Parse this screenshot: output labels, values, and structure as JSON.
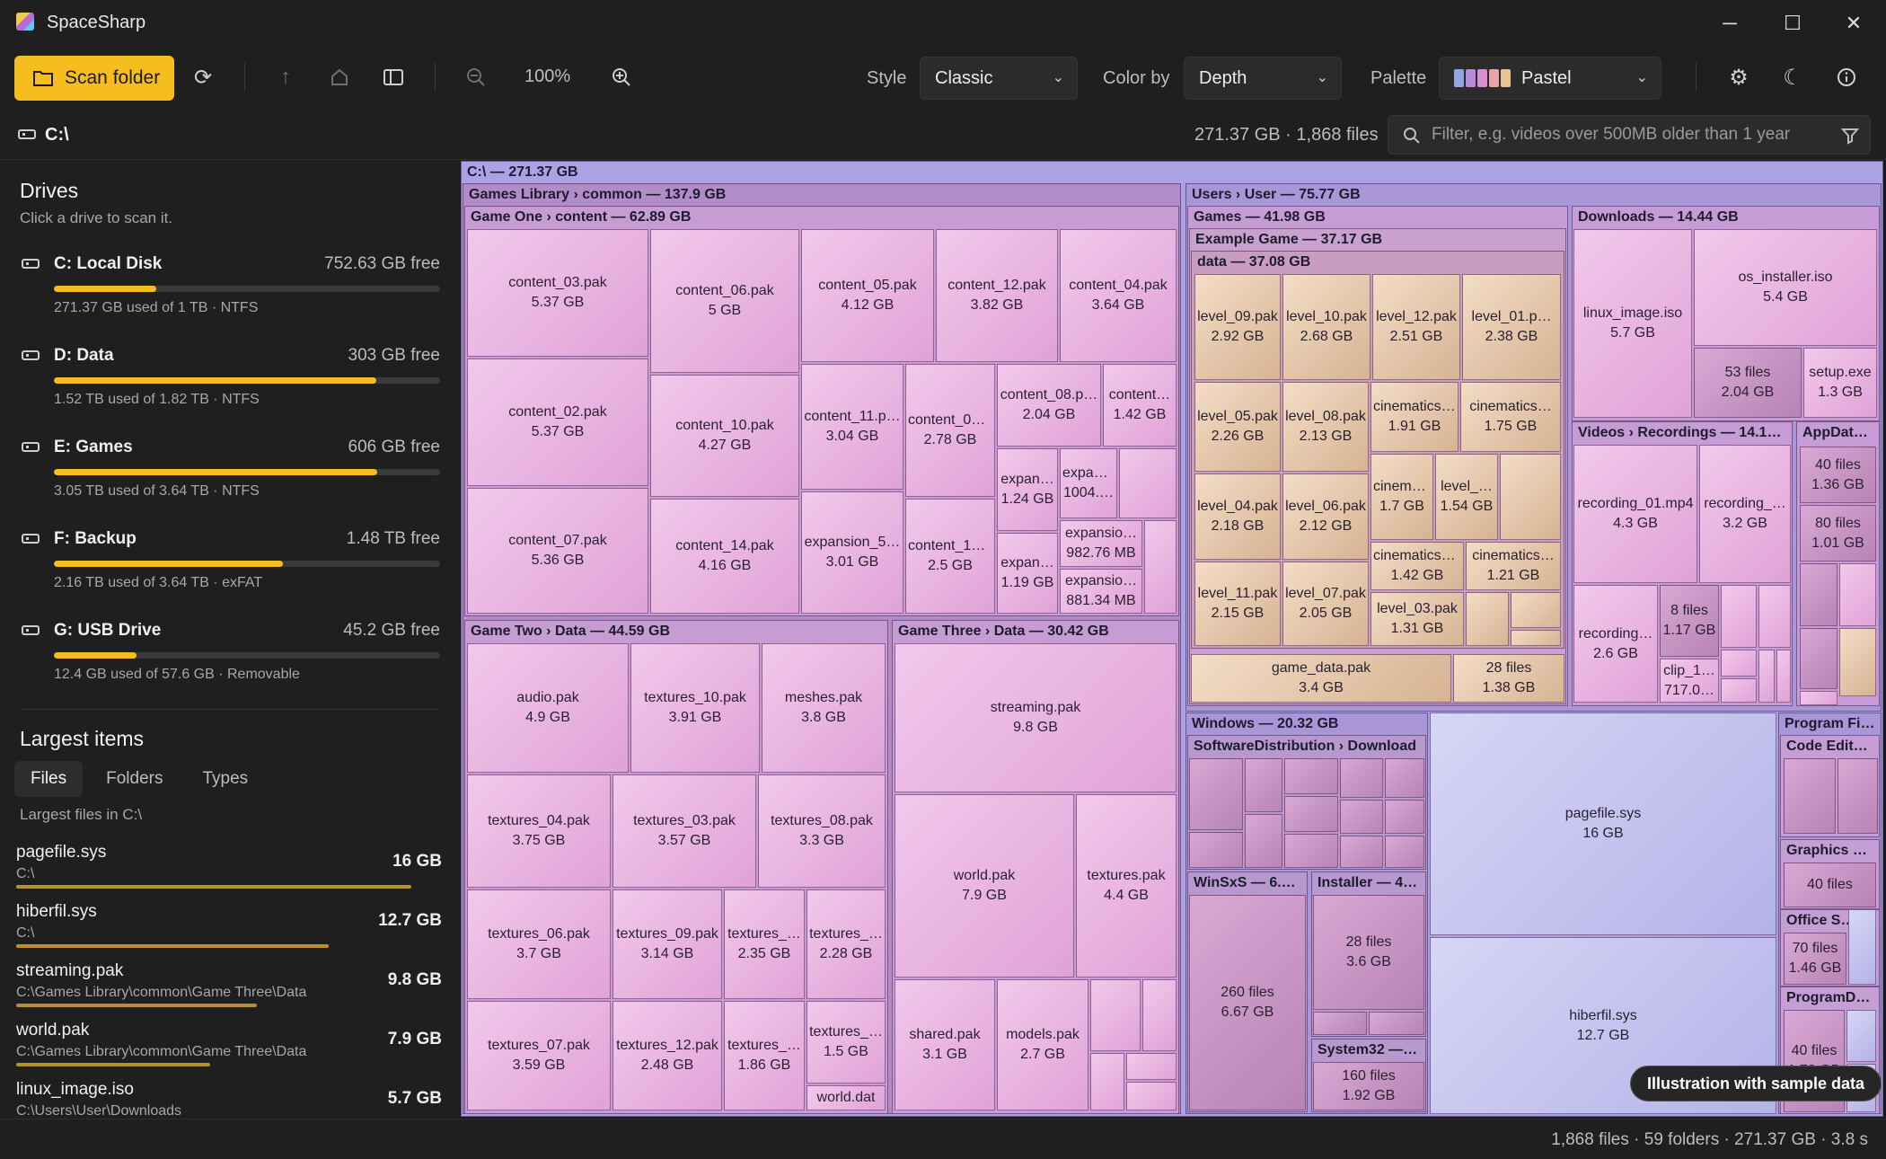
{
  "app": {
    "title": "SpaceSharp"
  },
  "toolbar": {
    "scan_label": "Scan folder",
    "zoom": "100%",
    "style_label": "Style",
    "style_value": "Classic",
    "colorby_label": "Color by",
    "colorby_value": "Depth",
    "palette_label": "Palette",
    "palette_value": "Pastel",
    "palette_colors": [
      "#8fa7e6",
      "#b98be0",
      "#d98fcf",
      "#e7a3a8",
      "#e9c493"
    ]
  },
  "pathbar": {
    "path": "C:\\",
    "summary": "271.37 GB · 1,868 files",
    "filter_placeholder": "Filter, e.g. videos over 500MB older than 1 year"
  },
  "sidebar": {
    "drives_title": "Drives",
    "drives_hint": "Click a drive to scan it.",
    "drives": [
      {
        "name": "C: Local Disk",
        "free": "752.63 GB free",
        "info": "271.37 GB used of 1 TB · NTFS",
        "used_pct": 26.5
      },
      {
        "name": "D: Data",
        "free": "303 GB free",
        "info": "1.52 TB used of 1.82 TB · NTFS",
        "used_pct": 83.5
      },
      {
        "name": "E: Games",
        "free": "606 GB free",
        "info": "3.05 TB used of 3.64 TB · NTFS",
        "used_pct": 83.8
      },
      {
        "name": "F: Backup",
        "free": "1.48 TB free",
        "info": "2.16 TB used of 3.64 TB · exFAT",
        "used_pct": 59.3
      },
      {
        "name": "G: USB Drive",
        "free": "45.2 GB free",
        "info": "12.4 GB used of 57.6 GB · Removable",
        "used_pct": 21.5
      }
    ],
    "largest_title": "Largest items",
    "tabs": [
      "Files",
      "Folders",
      "Types"
    ],
    "largest_caption": "Largest files in C:\\",
    "files": [
      {
        "name": "pagefile.sys",
        "path": "C:\\",
        "size": "16 GB",
        "rel": 1.0
      },
      {
        "name": "hiberfil.sys",
        "path": "C:\\",
        "size": "12.7 GB",
        "rel": 0.79
      },
      {
        "name": "streaming.pak",
        "path": "C:\\Games Library\\common\\Game Three\\Data",
        "size": "9.8 GB",
        "rel": 0.61
      },
      {
        "name": "world.pak",
        "path": "C:\\Games Library\\common\\Game Three\\Data",
        "size": "7.9 GB",
        "rel": 0.49
      },
      {
        "name": "linux_image.iso",
        "path": "C:\\Users\\User\\Downloads",
        "size": "5.7 GB",
        "rel": 0.36
      }
    ]
  },
  "treemap": {
    "root": "C:\\  —  271.37 GB",
    "groups": {
      "games_library": "Games Library › common  —  137.9 GB",
      "game_one": "Game One › content  —  62.89 GB",
      "game_two": "Game Two › Data  —  44.59 GB",
      "game_three": "Game Three › Data  —  30.42 GB",
      "users": "Users › User  —  75.77 GB",
      "games": "Games  —  41.98 GB",
      "example_game": "Example Game  —  37.17 GB",
      "data": "data  —  37.08 GB",
      "downloads": "Downloads  —  14.44 GB",
      "videos": "Videos › Recordings  —  14.16 GB",
      "appdata": "AppData…",
      "windows": "Windows  —  20.32 GB",
      "softdist": "SoftwareDistribution › Download",
      "winsxs": "WinSxS  —  6.…",
      "installer": "Installer  —  4.…",
      "system32": "System32  —  …",
      "program_files": "Program Fil…",
      "code_editor": "Code Edito…",
      "graphics": "Graphics D…",
      "office": "Office S…",
      "programdata": "ProgramDat…"
    },
    "leaves": {
      "c03": [
        "content_03.pak",
        "5.37 GB"
      ],
      "c06": [
        "content_06.pak",
        "5 GB"
      ],
      "c05": [
        "content_05.pak",
        "4.12 GB"
      ],
      "c12": [
        "content_12.pak",
        "3.82 GB"
      ],
      "c04": [
        "content_04.pak",
        "3.64 GB"
      ],
      "c02": [
        "content_02.pak",
        "5.37 GB"
      ],
      "c10": [
        "content_10.pak",
        "4.27 GB"
      ],
      "c11": [
        "content_11.p…",
        "3.04 GB"
      ],
      "c09": [
        "content_09…",
        "2.78 GB"
      ],
      "c08": [
        "content_08.p…",
        "2.04 GB"
      ],
      "cx": [
        "content…",
        "1.42 GB"
      ],
      "e1": [
        "expan…",
        "1.24 GB"
      ],
      "e2": [
        "expan…",
        "1004.…"
      ],
      "c07": [
        "content_07.pak",
        "5.36 GB"
      ],
      "c14": [
        "content_14.pak",
        "4.16 GB"
      ],
      "e5": [
        "expansion_5…",
        "3.01 GB"
      ],
      "c13": [
        "content_13…",
        "2.5 GB"
      ],
      "e3": [
        "expan…",
        "1.19 GB"
      ],
      "e4": [
        "expansio…",
        "982.76 MB"
      ],
      "e6": [
        "expansio…",
        "881.34 MB"
      ],
      "audio": [
        "audio.pak",
        "4.9 GB"
      ],
      "t10": [
        "textures_10.pak",
        "3.91 GB"
      ],
      "meshes": [
        "meshes.pak",
        "3.8 GB"
      ],
      "t04": [
        "textures_04.pak",
        "3.75 GB"
      ],
      "t03": [
        "textures_03.pak",
        "3.57 GB"
      ],
      "t08": [
        "textures_08.pak",
        "3.3 GB"
      ],
      "t06": [
        "textures_06.pak",
        "3.7 GB"
      ],
      "t09": [
        "textures_09.pak",
        "3.14 GB"
      ],
      "tA": [
        "textures_…",
        "2.35 GB"
      ],
      "tB": [
        "textures_…",
        "2.28 GB"
      ],
      "t07": [
        "textures_07.pak",
        "3.59 GB"
      ],
      "t12": [
        "textures_12.pak",
        "2.48 GB"
      ],
      "tC": [
        "textures_…",
        "1.86 GB"
      ],
      "tD": [
        "textures_…",
        "1.5 GB"
      ],
      "worlddat": [
        "world.dat",
        ""
      ],
      "streaming": [
        "streaming.pak",
        "9.8 GB"
      ],
      "world": [
        "world.pak",
        "7.9 GB"
      ],
      "texturespak": [
        "textures.pak",
        "4.4 GB"
      ],
      "shared": [
        "shared.pak",
        "3.1 GB"
      ],
      "models": [
        "models.pak",
        "2.7 GB"
      ],
      "l09": [
        "level_09.pak",
        "2.92 GB"
      ],
      "l10": [
        "level_10.pak",
        "2.68 GB"
      ],
      "l12": [
        "level_12.pak",
        "2.51 GB"
      ],
      "l01": [
        "level_01.p…",
        "2.38 GB"
      ],
      "l05": [
        "level_05.pak",
        "2.26 GB"
      ],
      "l08": [
        "level_08.pak",
        "2.13 GB"
      ],
      "cin1": [
        "cinematics_…",
        "1.91 GB"
      ],
      "cin2": [
        "cinematics…",
        "1.75 GB"
      ],
      "l04": [
        "level_04.pak",
        "2.18 GB"
      ],
      "l06": [
        "level_06.pak",
        "2.12 GB"
      ],
      "cin3": [
        "cinema…",
        "1.7 GB"
      ],
      "lv": [
        "level_…",
        "1.54 GB"
      ],
      "l11": [
        "level_11.pak",
        "2.15 GB"
      ],
      "l07": [
        "level_07.pak",
        "2.05 GB"
      ],
      "cin4": [
        "cinematics_…",
        "1.42 GB"
      ],
      "cin5": [
        "cinematics…",
        "1.21 GB"
      ],
      "l03": [
        "level_03.pak",
        "1.31 GB"
      ],
      "gamedata": [
        "game_data.pak",
        "3.4 GB"
      ],
      "f28": [
        "28 files",
        "1.38 GB"
      ],
      "linux": [
        "linux_image.iso",
        "5.7 GB"
      ],
      "osinst": [
        "os_installer.iso",
        "5.4 GB"
      ],
      "f53": [
        "53 files",
        "2.04 GB"
      ],
      "setup": [
        "setup.exe",
        "1.3 GB"
      ],
      "rec01": [
        "recording_01.mp4",
        "4.3 GB"
      ],
      "rec2": [
        "recording_…",
        "3.2 GB"
      ],
      "rec3": [
        "recording…",
        "2.6 GB"
      ],
      "f8": [
        "8 files",
        "1.17 GB"
      ],
      "clip": [
        "clip_1…",
        "717.0…"
      ],
      "ad40": [
        "40 files",
        "1.36 GB"
      ],
      "ad80": [
        "80 files",
        "1.01 GB"
      ],
      "pagefile": [
        "pagefile.sys",
        "16 GB"
      ],
      "hiberfil": [
        "hiberfil.sys",
        "12.7 GB"
      ],
      "f260": [
        "260 files",
        "6.67 GB"
      ],
      "f28b": [
        "28 files",
        "3.6 GB"
      ],
      "f160": [
        "160 files",
        "1.92 GB"
      ],
      "g40": [
        "40 files",
        ""
      ],
      "o70": [
        "70 files",
        "1.46 GB"
      ],
      "pd40": [
        "40 files",
        "1.78 GB"
      ]
    },
    "badge": "Illustration with sample data"
  },
  "status": {
    "text": "1,868 files · 59 folders · 271.37 GB · 3.8 s"
  }
}
